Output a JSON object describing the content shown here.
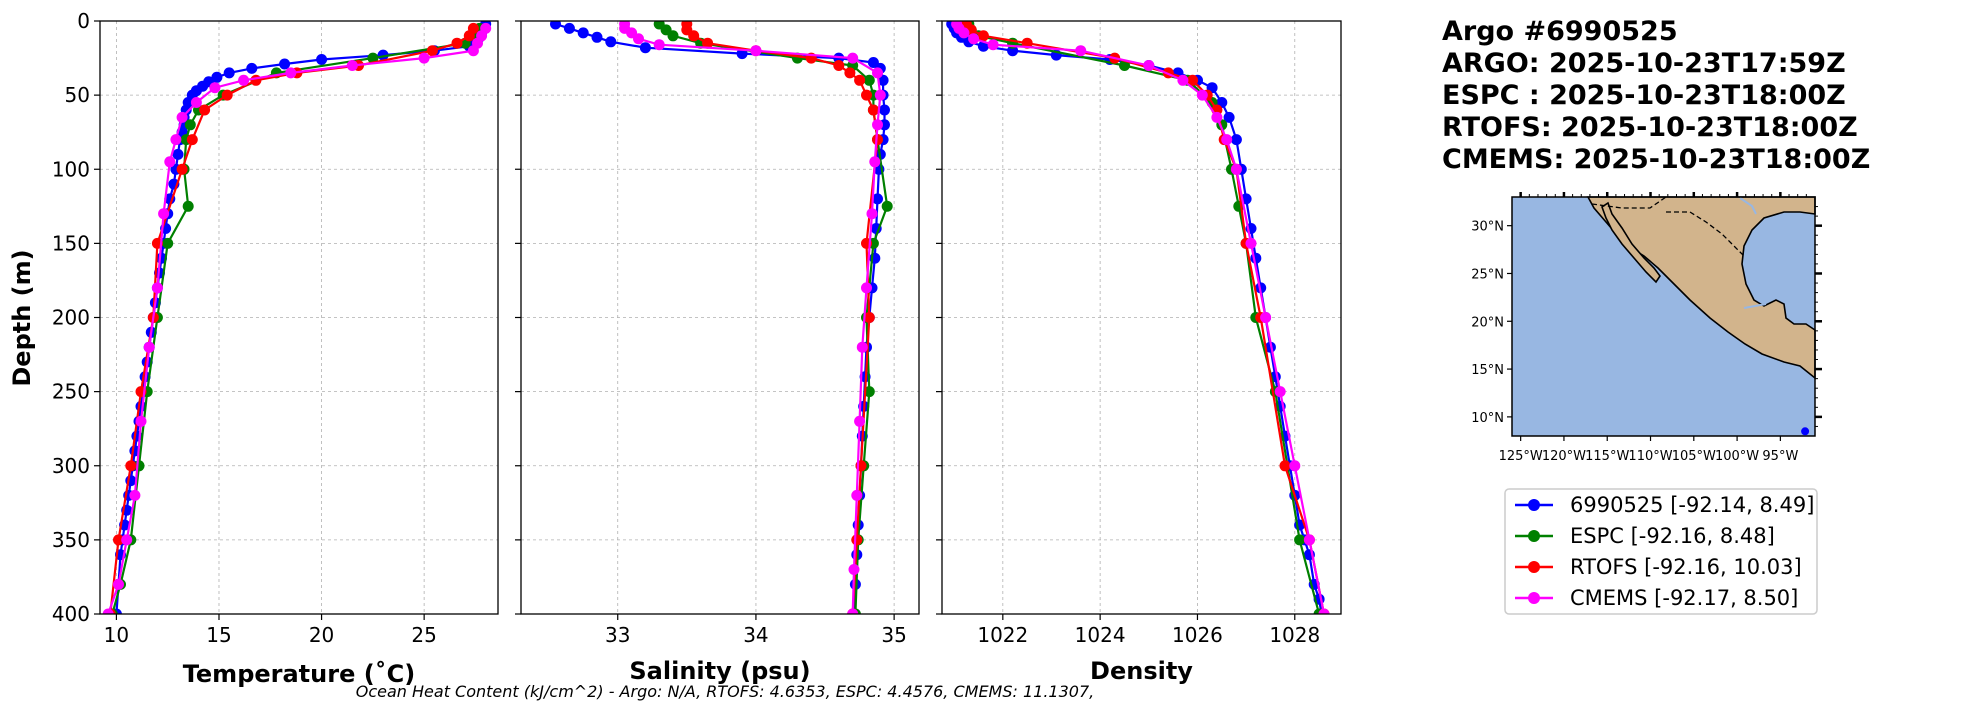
{
  "header": {
    "line1": "Argo #6990525",
    "line2": "ARGO: 2025-10-23T17:59Z",
    "line3": "ESPC : 2025-10-23T18:00Z",
    "line4": "RTOFS: 2025-10-23T18:00Z",
    "line5": "CMEMS: 2025-10-23T18:00Z"
  },
  "footer": {
    "ohc": "Ocean Heat Content (kJ/cm^2) - Argo: N/A,  RTOFS: 4.6353,  ESPC: 4.4576,  CMEMS: 11.1307,"
  },
  "colors": {
    "argo": "#0000ff",
    "espc": "#008000",
    "rtofs": "#ff0000",
    "cmems": "#ff00ff",
    "ocean": "#98b7e2",
    "land": "#d2b48c",
    "grid": "#b0b0b0"
  },
  "legend": [
    {
      "label": "6990525 [-92.14, 8.49]",
      "color": "#0000ff"
    },
    {
      "label": "ESPC [-92.16, 8.48]",
      "color": "#008000"
    },
    {
      "label": "RTOFS [-92.16, 10.03]",
      "color": "#ff0000"
    },
    {
      "label": "CMEMS [-92.17, 8.50]",
      "color": "#ff00ff"
    }
  ],
  "map": {
    "lat_labels": [
      "30°N",
      "25°N",
      "20°N",
      "15°N",
      "10°N"
    ],
    "lon_labels": [
      "125°W",
      "120°W",
      "115°W",
      "110°W",
      "105°W",
      "100°W",
      "95°W"
    ],
    "lon_range": [
      -126,
      -91
    ],
    "lat_range": [
      8,
      33
    ],
    "float_location": [
      -92.14,
      8.49
    ]
  },
  "chart_data": [
    {
      "type": "line",
      "id": "temperature",
      "xlabel": "Temperature (˚C)",
      "ylabel": "Depth (m)",
      "xlim": [
        9.2,
        28.6
      ],
      "ylim": [
        400,
        0
      ],
      "xticks": [
        10,
        15,
        20,
        25
      ],
      "xtick_labels": [
        "10",
        "15",
        "20",
        "25"
      ],
      "yticks": [
        0,
        50,
        100,
        150,
        200,
        250,
        300,
        350,
        400
      ],
      "ytick_labels": [
        "0",
        "50",
        "100",
        "150",
        "200",
        "250",
        "300",
        "350",
        "400"
      ],
      "grid": true,
      "series": [
        {
          "name": "6990525",
          "color": "#0000ff",
          "x": [
            28.0,
            27.9,
            27.8,
            27.7,
            27.5,
            27.2,
            25.5,
            23.0,
            20.0,
            18.2,
            16.6,
            15.5,
            14.9,
            14.5,
            14.2,
            13.9,
            13.7,
            13.5,
            13.4,
            13.3,
            13.3,
            13.2,
            13.1,
            13.0,
            12.9,
            12.8,
            12.6,
            12.5,
            12.4,
            12.3,
            12.2,
            12.1,
            12.0,
            11.9,
            11.8,
            11.7,
            11.6,
            11.5,
            11.4,
            11.3,
            11.2,
            11.1,
            11.0,
            10.9,
            10.8,
            10.7,
            10.6,
            10.5,
            10.4,
            10.3,
            10.2,
            10.1,
            10.0
          ],
          "y": [
            2,
            5,
            8,
            11,
            14,
            17,
            20,
            23,
            26,
            29,
            32,
            35,
            38,
            41,
            44,
            47,
            50,
            55,
            60,
            65,
            70,
            75,
            80,
            90,
            100,
            110,
            120,
            130,
            140,
            150,
            160,
            170,
            180,
            190,
            200,
            210,
            220,
            230,
            240,
            250,
            260,
            270,
            280,
            290,
            300,
            310,
            320,
            330,
            340,
            350,
            360,
            380,
            400
          ]
        },
        {
          "name": "ESPC",
          "color": "#008000",
          "x": [
            27.7,
            27.6,
            27.0,
            22.5,
            17.8,
            15.2,
            14.0,
            13.6,
            13.4,
            13.3,
            13.5,
            12.5,
            12.0,
            11.5,
            11.1,
            10.7,
            10.2,
            9.8
          ],
          "y": [
            5,
            10,
            15,
            25,
            35,
            50,
            60,
            70,
            80,
            100,
            125,
            150,
            200,
            250,
            300,
            350,
            380,
            400
          ]
        },
        {
          "name": "RTOFS",
          "color": "#ff0000",
          "x": [
            27.4,
            27.2,
            26.6,
            25.4,
            21.8,
            18.8,
            16.8,
            15.4,
            14.3,
            13.7,
            13.2,
            12.0,
            11.8,
            11.2,
            10.7,
            10.1,
            9.7
          ],
          "y": [
            5,
            10,
            15,
            20,
            30,
            35,
            40,
            50,
            60,
            80,
            100,
            150,
            200,
            250,
            300,
            350,
            400
          ]
        },
        {
          "name": "CMEMS",
          "color": "#ff00ff",
          "x": [
            28.0,
            27.8,
            27.6,
            27.4,
            25.0,
            21.5,
            18.5,
            16.2,
            14.8,
            13.9,
            13.2,
            12.9,
            12.6,
            12.3,
            12.0,
            11.6,
            11.2,
            10.9,
            10.5,
            10.1,
            9.6
          ],
          "y": [
            5,
            10,
            15,
            20,
            25,
            30,
            35,
            40,
            45,
            55,
            65,
            80,
            95,
            130,
            180,
            220,
            270,
            320,
            350,
            380,
            400
          ]
        }
      ]
    },
    {
      "type": "line",
      "id": "salinity",
      "xlabel": "Salinity (psu)",
      "xlim": [
        32.3,
        35.18
      ],
      "ylim": [
        400,
        0
      ],
      "xticks": [
        33,
        34,
        35
      ],
      "xtick_labels": [
        "33",
        "34",
        "35"
      ],
      "grid": true,
      "series": [
        {
          "name": "6990525",
          "color": "#0000ff",
          "x": [
            32.55,
            32.65,
            32.75,
            32.85,
            32.95,
            33.2,
            33.9,
            34.6,
            34.85,
            34.9,
            34.92,
            34.92,
            34.93,
            34.93,
            34.92,
            34.9,
            34.89,
            34.88,
            34.87,
            34.86,
            34.84,
            34.82,
            34.8,
            34.79,
            34.78,
            34.77,
            34.76,
            34.75,
            34.74,
            34.73,
            34.72,
            34.71
          ],
          "y": [
            2,
            5,
            8,
            11,
            14,
            18,
            22,
            25,
            28,
            32,
            40,
            50,
            60,
            70,
            80,
            90,
            100,
            120,
            140,
            160,
            180,
            200,
            220,
            240,
            260,
            280,
            300,
            320,
            340,
            360,
            380,
            400
          ]
        },
        {
          "name": "ESPC",
          "color": "#008000",
          "x": [
            33.3,
            33.35,
            33.4,
            33.6,
            34.3,
            34.7,
            34.82,
            34.85,
            34.85,
            34.88,
            34.95,
            34.85,
            34.8,
            34.82,
            34.78,
            34.74,
            34.72
          ],
          "y": [
            2,
            6,
            10,
            15,
            25,
            30,
            40,
            50,
            60,
            80,
            125,
            150,
            200,
            250,
            300,
            350,
            400
          ]
        },
        {
          "name": "RTOFS",
          "color": "#ff0000",
          "x": [
            33.5,
            33.5,
            33.55,
            33.65,
            34.0,
            34.4,
            34.6,
            34.68,
            34.75,
            34.8,
            34.85,
            34.88,
            34.8,
            34.82,
            34.76,
            34.73,
            34.7
          ],
          "y": [
            2,
            6,
            10,
            15,
            20,
            25,
            30,
            35,
            40,
            50,
            60,
            80,
            150,
            200,
            300,
            350,
            400
          ]
        },
        {
          "name": "CMEMS",
          "color": "#ff00ff",
          "x": [
            33.05,
            33.05,
            33.1,
            33.15,
            33.3,
            34.0,
            34.7,
            34.88,
            34.9,
            34.88,
            34.86,
            34.84,
            34.8,
            34.77,
            34.75,
            34.73,
            34.71,
            34.7
          ],
          "y": [
            2,
            5,
            8,
            12,
            16,
            20,
            25,
            35,
            50,
            70,
            95,
            130,
            180,
            220,
            270,
            320,
            370,
            400
          ]
        }
      ]
    },
    {
      "type": "line",
      "id": "density",
      "xlabel": "Density",
      "xlim": [
        1020.75,
        1028.95
      ],
      "ylim": [
        400,
        0
      ],
      "xticks": [
        1022,
        1024,
        1026,
        1028
      ],
      "xtick_labels": [
        "1022",
        "1024",
        "1026",
        "1028"
      ],
      "grid": true,
      "series": [
        {
          "name": "6990525",
          "color": "#0000ff",
          "x": [
            1020.95,
            1021.0,
            1021.05,
            1021.15,
            1021.3,
            1021.6,
            1022.2,
            1023.1,
            1024.2,
            1025.0,
            1025.6,
            1026.0,
            1026.3,
            1026.5,
            1026.65,
            1026.8,
            1026.9,
            1027.0,
            1027.1,
            1027.2,
            1027.3,
            1027.4,
            1027.5,
            1027.6,
            1027.7,
            1027.8,
            1027.9,
            1028.0,
            1028.1,
            1028.2,
            1028.3,
            1028.4,
            1028.5,
            1028.55
          ],
          "y": [
            2,
            5,
            8,
            11,
            14,
            17,
            20,
            23,
            26,
            30,
            35,
            40,
            45,
            55,
            65,
            80,
            100,
            120,
            140,
            160,
            180,
            200,
            220,
            240,
            260,
            280,
            300,
            320,
            340,
            350,
            360,
            380,
            390,
            400
          ]
        },
        {
          "name": "ESPC",
          "color": "#008000",
          "x": [
            1021.3,
            1021.35,
            1021.5,
            1022.2,
            1024.5,
            1025.8,
            1026.3,
            1026.5,
            1026.7,
            1026.85,
            1027.0,
            1027.2,
            1027.6,
            1028.1,
            1028.5
          ],
          "y": [
            2,
            6,
            10,
            15,
            30,
            40,
            55,
            70,
            100,
            125,
            150,
            200,
            250,
            350,
            400
          ]
        },
        {
          "name": "RTOFS",
          "color": "#ff0000",
          "x": [
            1021.25,
            1021.35,
            1021.6,
            1022.5,
            1024.3,
            1025.4,
            1025.9,
            1026.2,
            1026.4,
            1026.55,
            1026.8,
            1027.0,
            1027.3,
            1027.8,
            1028.3,
            1028.6
          ],
          "y": [
            2,
            6,
            10,
            15,
            25,
            35,
            40,
            50,
            60,
            80,
            100,
            150,
            200,
            300,
            350,
            400
          ]
        },
        {
          "name": "CMEMS",
          "color": "#ff00ff",
          "x": [
            1021.05,
            1021.1,
            1021.2,
            1021.4,
            1021.8,
            1023.6,
            1025.0,
            1025.7,
            1026.1,
            1026.4,
            1026.6,
            1026.8,
            1027.1,
            1027.4,
            1027.7,
            1028.0,
            1028.3,
            1028.6
          ],
          "y": [
            2,
            5,
            8,
            12,
            16,
            20,
            30,
            40,
            50,
            65,
            80,
            100,
            150,
            200,
            250,
            300,
            350,
            400
          ]
        }
      ]
    }
  ]
}
